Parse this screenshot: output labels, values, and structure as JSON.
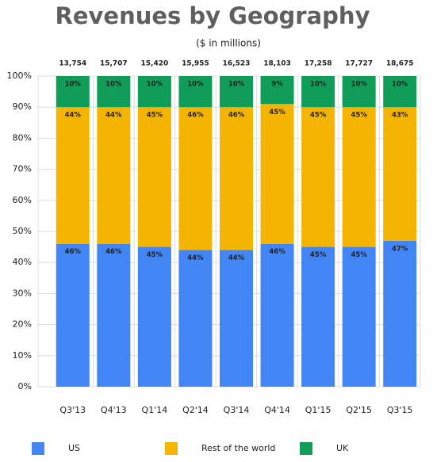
{
  "chart_data": {
    "type": "stacked_bar_percent",
    "title": "Revenues by Geography",
    "subtitle": "($ in millions)",
    "categories": [
      "Q3'13",
      "Q4'13",
      "Q1'14",
      "Q2'14",
      "Q3'14",
      "Q4'14",
      "Q1'15",
      "Q2'15",
      "Q3'15"
    ],
    "totals": [
      13754,
      15707,
      15420,
      15955,
      16523,
      18103,
      17258,
      17727,
      18675
    ],
    "total_labels": [
      "13,754",
      "15,707",
      "15,420",
      "15,955",
      "16,523",
      "18,103",
      "17,258",
      "17,727",
      "18,675"
    ],
    "series": [
      {
        "name": "US",
        "color": "#4285f4",
        "values": [
          46,
          46,
          45,
          44,
          44,
          46,
          45,
          45,
          47
        ],
        "value_labels": [
          "46%",
          "46%",
          "45%",
          "44%",
          "44%",
          "46%",
          "45%",
          "45%",
          "47%"
        ]
      },
      {
        "name": "Rest of the world",
        "color": "#f4b400",
        "values": [
          44,
          44,
          45,
          46,
          46,
          45,
          45,
          45,
          43
        ],
        "value_labels": [
          "44%",
          "44%",
          "45%",
          "46%",
          "46%",
          "45%",
          "45%",
          "45%",
          "43%"
        ]
      },
      {
        "name": "UK",
        "color": "#0f9d58",
        "values": [
          10,
          10,
          10,
          10,
          10,
          9,
          10,
          10,
          10
        ],
        "value_labels": [
          "10%",
          "10%",
          "10%",
          "10%",
          "10%",
          "9%",
          "10%",
          "10%",
          "10%"
        ]
      }
    ],
    "ylim": [
      0,
      100
    ],
    "yticks": [
      {
        "value": 0,
        "label": "0%"
      },
      {
        "value": 10,
        "label": "10%"
      },
      {
        "value": 20,
        "label": "20%"
      },
      {
        "value": 30,
        "label": "30%"
      },
      {
        "value": 40,
        "label": "40%"
      },
      {
        "value": 50,
        "label": "50%"
      },
      {
        "value": 60,
        "label": "60%"
      },
      {
        "value": 70,
        "label": "70%"
      },
      {
        "value": 80,
        "label": "80%"
      },
      {
        "value": 90,
        "label": "90%"
      },
      {
        "value": 100,
        "label": "100%"
      }
    ],
    "grid": true
  }
}
